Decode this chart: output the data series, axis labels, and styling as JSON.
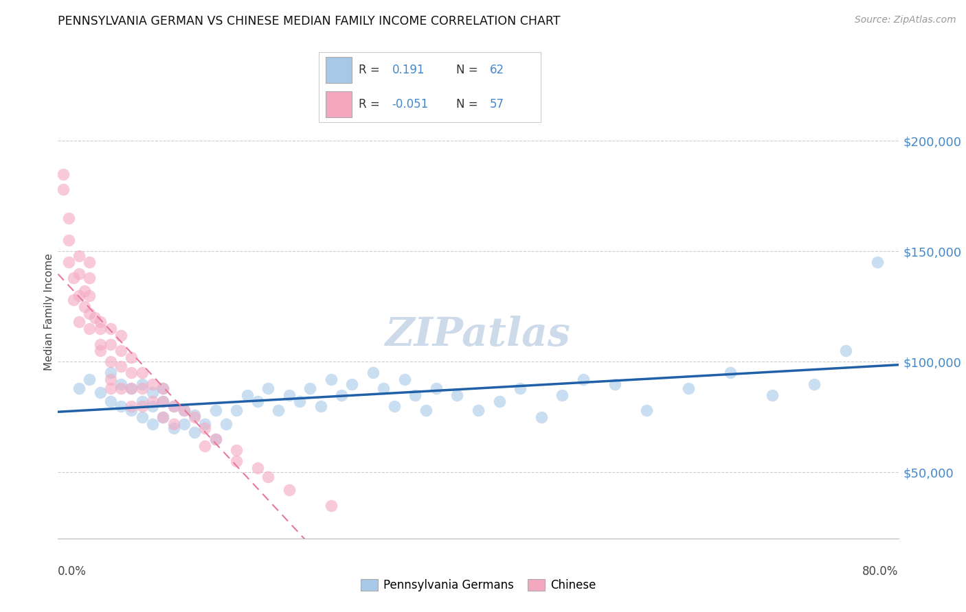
{
  "title": "PENNSYLVANIA GERMAN VS CHINESE MEDIAN FAMILY INCOME CORRELATION CHART",
  "source": "Source: ZipAtlas.com",
  "ylabel": "Median Family Income",
  "r_blue": 0.191,
  "n_blue": 62,
  "r_pink": -0.051,
  "n_pink": 57,
  "ytick_labels": [
    "$50,000",
    "$100,000",
    "$150,000",
    "$200,000"
  ],
  "ytick_values": [
    50000,
    100000,
    150000,
    200000
  ],
  "y_min": 20000,
  "y_max": 225000,
  "x_min": 0.0,
  "x_max": 0.8,
  "blue_color": "#a8c8e8",
  "pink_color": "#f4a8c0",
  "blue_line_color": "#2060a8",
  "pink_line_color": "#e87898",
  "grid_color": "#cccccc",
  "watermark_color": "#ccdaea",
  "blue_scatter_x": [
    0.02,
    0.03,
    0.04,
    0.05,
    0.05,
    0.06,
    0.06,
    0.07,
    0.07,
    0.08,
    0.08,
    0.08,
    0.09,
    0.09,
    0.09,
    0.1,
    0.1,
    0.1,
    0.11,
    0.11,
    0.12,
    0.12,
    0.13,
    0.13,
    0.14,
    0.15,
    0.15,
    0.16,
    0.17,
    0.18,
    0.19,
    0.2,
    0.21,
    0.22,
    0.23,
    0.24,
    0.25,
    0.26,
    0.27,
    0.28,
    0.3,
    0.31,
    0.32,
    0.33,
    0.34,
    0.35,
    0.36,
    0.38,
    0.4,
    0.42,
    0.44,
    0.46,
    0.48,
    0.5,
    0.53,
    0.56,
    0.6,
    0.64,
    0.68,
    0.72,
    0.75,
    0.78
  ],
  "blue_scatter_y": [
    88000,
    92000,
    86000,
    95000,
    82000,
    80000,
    90000,
    78000,
    88000,
    75000,
    82000,
    90000,
    72000,
    80000,
    86000,
    75000,
    82000,
    88000,
    70000,
    80000,
    72000,
    78000,
    68000,
    76000,
    72000,
    78000,
    65000,
    72000,
    78000,
    85000,
    82000,
    88000,
    78000,
    85000,
    82000,
    88000,
    80000,
    92000,
    85000,
    90000,
    95000,
    88000,
    80000,
    92000,
    85000,
    78000,
    88000,
    85000,
    78000,
    82000,
    88000,
    75000,
    85000,
    92000,
    90000,
    78000,
    88000,
    95000,
    85000,
    90000,
    105000,
    145000
  ],
  "pink_scatter_x": [
    0.005,
    0.005,
    0.01,
    0.01,
    0.01,
    0.015,
    0.015,
    0.02,
    0.02,
    0.02,
    0.02,
    0.025,
    0.025,
    0.03,
    0.03,
    0.03,
    0.03,
    0.03,
    0.035,
    0.04,
    0.04,
    0.04,
    0.04,
    0.05,
    0.05,
    0.05,
    0.05,
    0.05,
    0.06,
    0.06,
    0.06,
    0.06,
    0.07,
    0.07,
    0.07,
    0.07,
    0.08,
    0.08,
    0.08,
    0.09,
    0.09,
    0.1,
    0.1,
    0.1,
    0.11,
    0.11,
    0.12,
    0.13,
    0.14,
    0.14,
    0.15,
    0.17,
    0.17,
    0.19,
    0.2,
    0.22,
    0.26
  ],
  "pink_scatter_y": [
    178000,
    185000,
    165000,
    155000,
    145000,
    138000,
    128000,
    148000,
    140000,
    130000,
    118000,
    132000,
    125000,
    145000,
    138000,
    130000,
    122000,
    115000,
    120000,
    115000,
    108000,
    118000,
    105000,
    115000,
    108000,
    100000,
    92000,
    88000,
    112000,
    105000,
    98000,
    88000,
    102000,
    95000,
    88000,
    80000,
    95000,
    88000,
    80000,
    90000,
    82000,
    88000,
    82000,
    75000,
    80000,
    72000,
    78000,
    75000,
    70000,
    62000,
    65000,
    60000,
    55000,
    52000,
    48000,
    42000,
    35000
  ]
}
